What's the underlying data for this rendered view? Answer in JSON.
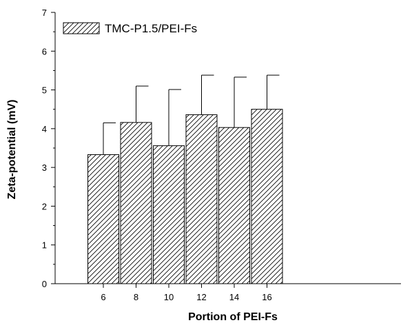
{
  "chart_data": {
    "type": "bar",
    "categories": [
      "6",
      "8",
      "10",
      "12",
      "14",
      "16"
    ],
    "series": [
      {
        "name": "TMC-P1.5/PEI-Fs",
        "values": [
          3.33,
          4.16,
          3.56,
          4.36,
          4.03,
          4.5
        ],
        "error_upper": [
          0.82,
          0.94,
          1.45,
          1.02,
          1.3,
          0.88
        ]
      }
    ],
    "xlabel": "Portion of PEI-Fs",
    "ylabel": "Zeta-potential (mV)",
    "ylim": [
      0,
      7
    ],
    "yticks": [
      0,
      1,
      2,
      3,
      4,
      5,
      6,
      7
    ],
    "grid": false,
    "legend_position": "top-left",
    "bar_fill": "hatched",
    "colors": {
      "axis": "#000000",
      "bar_stroke": "#000000",
      "hatch": "#000000",
      "background": "#ffffff"
    }
  }
}
